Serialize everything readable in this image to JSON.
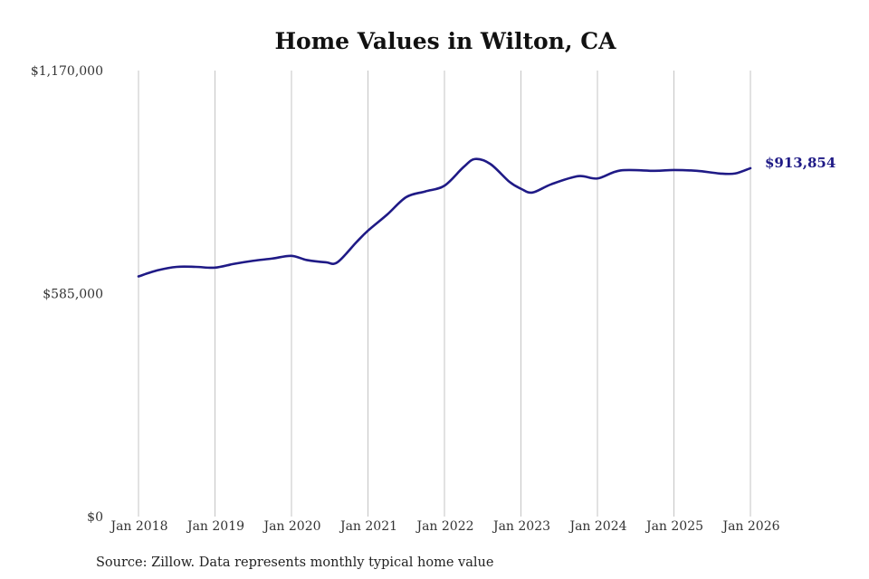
{
  "chart_data": {
    "type": "line",
    "title": "Home Values in Wilton, CA",
    "xlabel": "",
    "ylabel": "",
    "ylim": [
      0,
      1170000
    ],
    "yticks": [
      {
        "value": 0,
        "label": "$0"
      },
      {
        "value": 585000,
        "label": "$585,000"
      },
      {
        "value": 1170000,
        "label": "$1,170,000"
      }
    ],
    "xticks": [
      {
        "value": 2018,
        "label": "Jan 2018"
      },
      {
        "value": 2019,
        "label": "Jan 2019"
      },
      {
        "value": 2020,
        "label": "Jan 2020"
      },
      {
        "value": 2021,
        "label": "Jan 2021"
      },
      {
        "value": 2022,
        "label": "Jan 2022"
      },
      {
        "value": 2023,
        "label": "Jan 2023"
      },
      {
        "value": 2024,
        "label": "Jan 2024"
      },
      {
        "value": 2025,
        "label": "Jan 2025"
      },
      {
        "value": 2026,
        "label": "Jan 2026"
      }
    ],
    "grid": "vertical",
    "line_color": "#1f1a86",
    "series": [
      {
        "points": [
          {
            "x": 2018.0,
            "y": 630000
          },
          {
            "x": 2018.25,
            "y": 646000
          },
          {
            "x": 2018.5,
            "y": 655000
          },
          {
            "x": 2018.75,
            "y": 655000
          },
          {
            "x": 2019.0,
            "y": 653000
          },
          {
            "x": 2019.25,
            "y": 663000
          },
          {
            "x": 2019.5,
            "y": 671000
          },
          {
            "x": 2019.75,
            "y": 677000
          },
          {
            "x": 2020.0,
            "y": 684000
          },
          {
            "x": 2020.2,
            "y": 673000
          },
          {
            "x": 2020.45,
            "y": 667000
          },
          {
            "x": 2020.6,
            "y": 667000
          },
          {
            "x": 2020.85,
            "y": 720000
          },
          {
            "x": 2021.0,
            "y": 750000
          },
          {
            "x": 2021.25,
            "y": 792000
          },
          {
            "x": 2021.5,
            "y": 838000
          },
          {
            "x": 2021.75,
            "y": 853000
          },
          {
            "x": 2022.0,
            "y": 868000
          },
          {
            "x": 2022.25,
            "y": 917000
          },
          {
            "x": 2022.4,
            "y": 938000
          },
          {
            "x": 2022.6,
            "y": 925000
          },
          {
            "x": 2022.85,
            "y": 878000
          },
          {
            "x": 2023.0,
            "y": 860000
          },
          {
            "x": 2023.15,
            "y": 850000
          },
          {
            "x": 2023.4,
            "y": 872000
          },
          {
            "x": 2023.75,
            "y": 893000
          },
          {
            "x": 2024.0,
            "y": 887000
          },
          {
            "x": 2024.3,
            "y": 908000
          },
          {
            "x": 2024.75,
            "y": 907000
          },
          {
            "x": 2025.0,
            "y": 909000
          },
          {
            "x": 2025.3,
            "y": 907000
          },
          {
            "x": 2025.6,
            "y": 900000
          },
          {
            "x": 2025.8,
            "y": 900000
          },
          {
            "x": 2026.0,
            "y": 913854
          }
        ]
      }
    ],
    "end_label": "$913,854",
    "source": "Source: Zillow. Data represents monthly typical home value"
  }
}
